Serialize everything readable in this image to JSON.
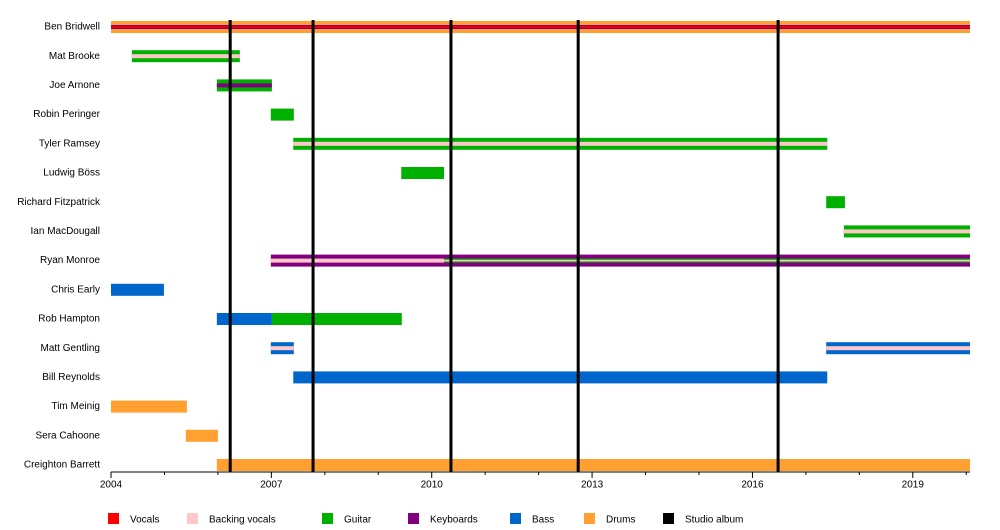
{
  "chart_data": {
    "type": "timeline",
    "xlim": [
      2004,
      2020.07
    ],
    "xticks": [
      2004,
      2007,
      2010,
      2013,
      2016,
      2019
    ],
    "minor_xticks": [
      2005,
      2006,
      2008,
      2009,
      2011,
      2012,
      2014,
      2015,
      2017,
      2018,
      2020
    ],
    "roles": [
      {
        "name": "Vocals",
        "color": "#ff0000"
      },
      {
        "name": "Backing vocals",
        "color": "#ffc8c8"
      },
      {
        "name": "Guitar",
        "color": "#00b000"
      },
      {
        "name": "Keyboards",
        "color": "#800080"
      },
      {
        "name": "Bass",
        "color": "#0066cc"
      },
      {
        "name": "Drums",
        "color": "#ffa030"
      }
    ],
    "albums": {
      "name": "Studio album",
      "color": "#000000",
      "x": [
        2006.23,
        2007.78,
        2010.36,
        2012.74,
        2016.48
      ]
    },
    "members": [
      {
        "name": "Ben Bridwell",
        "bars": [
          {
            "start": 2004,
            "end": 2020.07,
            "roles": [
              "Drums",
              "Keyboards",
              "Vocals"
            ]
          }
        ]
      },
      {
        "name": "Mat Brooke",
        "bars": [
          {
            "start": 2004.39,
            "end": 2006.41,
            "roles": [
              "Guitar",
              "Backing vocals"
            ]
          }
        ]
      },
      {
        "name": "Joe Arnone",
        "bars": [
          {
            "start": 2005.98,
            "end": 2007.01,
            "roles": [
              "Guitar",
              "Keyboards"
            ]
          }
        ]
      },
      {
        "name": "Robin Peringer",
        "bars": [
          {
            "start": 2006.99,
            "end": 2007.42,
            "roles": [
              "Guitar"
            ]
          }
        ]
      },
      {
        "name": "Tyler Ramsey",
        "bars": [
          {
            "start": 2007.41,
            "end": 2017.4,
            "roles": [
              "Guitar",
              "Backing vocals"
            ]
          }
        ]
      },
      {
        "name": "Ludwig Böss",
        "bars": [
          {
            "start": 2009.43,
            "end": 2010.23,
            "roles": [
              "Guitar"
            ]
          }
        ]
      },
      {
        "name": "Richard Fitzpatrick",
        "bars": [
          {
            "start": 2017.38,
            "end": 2017.73,
            "roles": [
              "Guitar"
            ]
          }
        ]
      },
      {
        "name": "Ian MacDougall",
        "bars": [
          {
            "start": 2017.71,
            "end": 2020.07,
            "roles": [
              "Guitar",
              "Backing vocals"
            ]
          }
        ]
      },
      {
        "name": "Ryan Monroe",
        "bars": [
          {
            "start": 2006.99,
            "end": 2010.23,
            "roles": [
              "Keyboards",
              "Backing vocals"
            ]
          },
          {
            "start": 2010.23,
            "end": 2020.07,
            "roles": [
              "Keyboards",
              "Guitar",
              "Backing vocals"
            ]
          }
        ]
      },
      {
        "name": "Chris Early",
        "bars": [
          {
            "start": 2004,
            "end": 2004.99,
            "roles": [
              "Bass"
            ]
          }
        ]
      },
      {
        "name": "Rob Hampton",
        "bars": [
          {
            "start": 2005.98,
            "end": 2007.01,
            "roles": [
              "Bass"
            ]
          },
          {
            "start": 2007.01,
            "end": 2009.44,
            "roles": [
              "Guitar"
            ]
          }
        ]
      },
      {
        "name": "Matt Gentling",
        "bars": [
          {
            "start": 2006.99,
            "end": 2007.42,
            "roles": [
              "Bass",
              "Backing vocals"
            ]
          },
          {
            "start": 2017.38,
            "end": 2020.07,
            "roles": [
              "Bass",
              "Backing vocals"
            ]
          }
        ]
      },
      {
        "name": "Bill Reynolds",
        "bars": [
          {
            "start": 2007.41,
            "end": 2017.4,
            "roles": [
              "Bass"
            ]
          }
        ]
      },
      {
        "name": "Tim Meinig",
        "bars": [
          {
            "start": 2004,
            "end": 2005.42,
            "roles": [
              "Drums"
            ]
          }
        ]
      },
      {
        "name": "Sera Cahoone",
        "bars": [
          {
            "start": 2005.4,
            "end": 2006.0,
            "roles": [
              "Drums"
            ]
          }
        ]
      },
      {
        "name": "Creighton Barrett",
        "bars": [
          {
            "start": 2005.98,
            "end": 2020.07,
            "roles": [
              "Drums"
            ]
          }
        ]
      }
    ]
  }
}
